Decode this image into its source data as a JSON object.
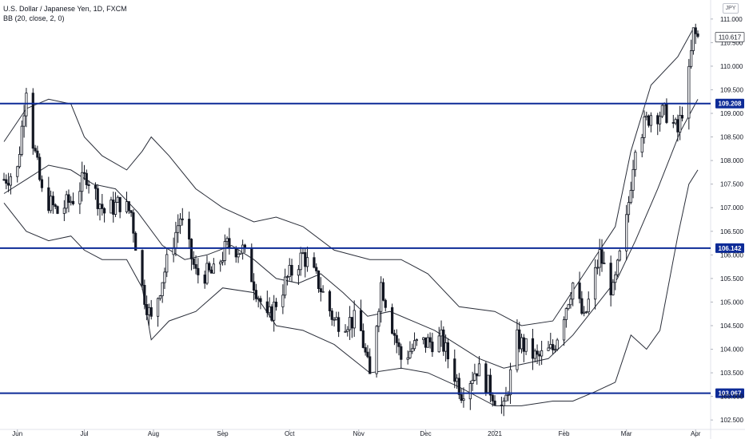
{
  "legend": {
    "symbol_line": "U.S. Dollar / Japanese Yen, 1D, FXCM",
    "indicator_line": "BB (20, close, 2, 0)"
  },
  "currency_badge": "JPY",
  "colors": {
    "level_line": "#0d2b97",
    "candle": "#131722",
    "band": "#2a2e39",
    "price_label_bg": "#0d2b97",
    "last_price_bg": "#ffffff"
  },
  "chart_data": {
    "type": "candlestick",
    "title": "U.S. Dollar / Japanese Yen, 1D, FXCM",
    "indicator": "BB (20, close, 2, 0)",
    "ylim": [
      102.3,
      111.2
    ],
    "y_ticks": [
      "111.000",
      "110.500",
      "110.000",
      "109.500",
      "109.000",
      "108.500",
      "108.000",
      "107.500",
      "107.000",
      "106.500",
      "106.000",
      "105.500",
      "105.000",
      "104.500",
      "104.000",
      "103.500",
      "103.000",
      "102.500"
    ],
    "x_ticks": [
      "Jun",
      "Jul",
      "Aug",
      "Sep",
      "Oct",
      "Nov",
      "Dec",
      "2021",
      "Feb",
      "Mar",
      "Apr"
    ],
    "horizontal_levels": [
      109.208,
      106.142,
      103.067
    ],
    "level_labels": [
      "109.208",
      "106.142",
      "103.067"
    ],
    "last_price": "110.617",
    "close_path": [
      {
        "d": "2020-05-26",
        "c": 107.6
      },
      {
        "d": "2020-06-01",
        "c": 107.8
      },
      {
        "d": "2020-06-05",
        "c": 109.6
      },
      {
        "d": "2020-06-08",
        "c": 108.4
      },
      {
        "d": "2020-06-12",
        "c": 107.3
      },
      {
        "d": "2020-06-19",
        "c": 106.9
      },
      {
        "d": "2020-06-26",
        "c": 107.2
      },
      {
        "d": "2020-07-02",
        "c": 107.7
      },
      {
        "d": "2020-07-10",
        "c": 106.9
      },
      {
        "d": "2020-07-17",
        "c": 107.1
      },
      {
        "d": "2020-07-22",
        "c": 106.9
      },
      {
        "d": "2020-07-27",
        "c": 105.3
      },
      {
        "d": "2020-07-31",
        "c": 104.6
      },
      {
        "d": "2020-08-05",
        "c": 105.5
      },
      {
        "d": "2020-08-13",
        "c": 106.8
      },
      {
        "d": "2020-08-20",
        "c": 105.6
      },
      {
        "d": "2020-08-28",
        "c": 105.6
      },
      {
        "d": "2020-09-03",
        "c": 106.2
      },
      {
        "d": "2020-09-10",
        "c": 106.1
      },
      {
        "d": "2020-09-21",
        "c": 104.6
      },
      {
        "d": "2020-09-30",
        "c": 105.5
      },
      {
        "d": "2020-10-07",
        "c": 106.0
      },
      {
        "d": "2020-10-14",
        "c": 105.4
      },
      {
        "d": "2020-10-21",
        "c": 104.6
      },
      {
        "d": "2020-11-01",
        "c": 104.6
      },
      {
        "d": "2020-11-06",
        "c": 103.4
      },
      {
        "d": "2020-11-11",
        "c": 105.4
      },
      {
        "d": "2020-11-20",
        "c": 103.8
      },
      {
        "d": "2020-11-27",
        "c": 104.1
      },
      {
        "d": "2020-12-08",
        "c": 104.2
      },
      {
        "d": "2020-12-17",
        "c": 103.1
      },
      {
        "d": "2020-12-24",
        "c": 103.6
      },
      {
        "d": "2021-01-05",
        "c": 102.7
      },
      {
        "d": "2021-01-11",
        "c": 104.2
      },
      {
        "d": "2021-01-20",
        "c": 103.8
      },
      {
        "d": "2021-01-27",
        "c": 104.0
      },
      {
        "d": "2021-02-05",
        "c": 105.4
      },
      {
        "d": "2021-02-10",
        "c": 104.6
      },
      {
        "d": "2021-02-17",
        "c": 106.0
      },
      {
        "d": "2021-02-23",
        "c": 105.2
      },
      {
        "d": "2021-03-01",
        "c": 106.7
      },
      {
        "d": "2021-03-05",
        "c": 108.4
      },
      {
        "d": "2021-03-12",
        "c": 109.0
      },
      {
        "d": "2021-03-19",
        "c": 109.0
      },
      {
        "d": "2021-03-24",
        "c": 108.6
      },
      {
        "d": "2021-03-29",
        "c": 109.8
      },
      {
        "d": "2021-03-31",
        "c": 110.7
      },
      {
        "d": "2021-04-02",
        "c": 110.6
      }
    ],
    "bb_upper": [
      {
        "d": "2020-05-26",
        "v": 108.4
      },
      {
        "d": "2020-06-05",
        "v": 109.1
      },
      {
        "d": "2020-06-15",
        "v": 109.3
      },
      {
        "d": "2020-06-25",
        "v": 109.2
      },
      {
        "d": "2020-07-01",
        "v": 108.5
      },
      {
        "d": "2020-07-09",
        "v": 108.1
      },
      {
        "d": "2020-07-20",
        "v": 107.8
      },
      {
        "d": "2020-07-27",
        "v": 108.2
      },
      {
        "d": "2020-07-31",
        "v": 108.5
      },
      {
        "d": "2020-08-08",
        "v": 108.1
      },
      {
        "d": "2020-08-20",
        "v": 107.4
      },
      {
        "d": "2020-09-01",
        "v": 107.0
      },
      {
        "d": "2020-09-15",
        "v": 106.7
      },
      {
        "d": "2020-09-25",
        "v": 106.8
      },
      {
        "d": "2020-10-07",
        "v": 106.6
      },
      {
        "d": "2020-10-21",
        "v": 106.1
      },
      {
        "d": "2020-11-06",
        "v": 105.9
      },
      {
        "d": "2020-11-20",
        "v": 105.9
      },
      {
        "d": "2020-12-02",
        "v": 105.6
      },
      {
        "d": "2020-12-16",
        "v": 104.9
      },
      {
        "d": "2021-01-01",
        "v": 104.8
      },
      {
        "d": "2021-01-13",
        "v": 104.5
      },
      {
        "d": "2021-01-27",
        "v": 104.6
      },
      {
        "d": "2021-02-10",
        "v": 105.6
      },
      {
        "d": "2021-02-24",
        "v": 106.6
      },
      {
        "d": "2021-03-03",
        "v": 108.2
      },
      {
        "d": "2021-03-12",
        "v": 109.6
      },
      {
        "d": "2021-03-24",
        "v": 110.2
      },
      {
        "d": "2021-03-31",
        "v": 110.8
      }
    ],
    "bb_middle": [
      {
        "d": "2020-05-26",
        "v": 107.3
      },
      {
        "d": "2020-06-05",
        "v": 107.6
      },
      {
        "d": "2020-06-15",
        "v": 107.9
      },
      {
        "d": "2020-06-25",
        "v": 107.8
      },
      {
        "d": "2020-07-05",
        "v": 107.5
      },
      {
        "d": "2020-07-15",
        "v": 107.4
      },
      {
        "d": "2020-07-25",
        "v": 106.9
      },
      {
        "d": "2020-08-05",
        "v": 106.2
      },
      {
        "d": "2020-08-15",
        "v": 105.9
      },
      {
        "d": "2020-08-25",
        "v": 106.0
      },
      {
        "d": "2020-09-05",
        "v": 106.2
      },
      {
        "d": "2020-09-15",
        "v": 105.9
      },
      {
        "d": "2020-09-25",
        "v": 105.5
      },
      {
        "d": "2020-10-05",
        "v": 105.4
      },
      {
        "d": "2020-10-15",
        "v": 105.6
      },
      {
        "d": "2020-10-25",
        "v": 105.2
      },
      {
        "d": "2020-11-05",
        "v": 104.7
      },
      {
        "d": "2020-11-15",
        "v": 104.8
      },
      {
        "d": "2020-11-25",
        "v": 104.6
      },
      {
        "d": "2020-12-05",
        "v": 104.4
      },
      {
        "d": "2020-12-15",
        "v": 104.1
      },
      {
        "d": "2020-12-25",
        "v": 103.8
      },
      {
        "d": "2021-01-05",
        "v": 103.6
      },
      {
        "d": "2021-01-15",
        "v": 103.7
      },
      {
        "d": "2021-01-25",
        "v": 103.8
      },
      {
        "d": "2021-02-05",
        "v": 104.3
      },
      {
        "d": "2021-02-15",
        "v": 104.9
      },
      {
        "d": "2021-02-25",
        "v": 105.5
      },
      {
        "d": "2021-03-05",
        "v": 106.3
      },
      {
        "d": "2021-03-15",
        "v": 107.4
      },
      {
        "d": "2021-03-25",
        "v": 108.6
      },
      {
        "d": "2021-04-02",
        "v": 109.3
      }
    ],
    "bb_lower": [
      {
        "d": "2020-05-26",
        "v": 107.1
      },
      {
        "d": "2020-06-05",
        "v": 106.5
      },
      {
        "d": "2020-06-15",
        "v": 106.3
      },
      {
        "d": "2020-06-25",
        "v": 106.4
      },
      {
        "d": "2020-07-01",
        "v": 106.1
      },
      {
        "d": "2020-07-09",
        "v": 105.9
      },
      {
        "d": "2020-07-20",
        "v": 105.9
      },
      {
        "d": "2020-07-27",
        "v": 105.3
      },
      {
        "d": "2020-07-31",
        "v": 104.2
      },
      {
        "d": "2020-08-08",
        "v": 104.6
      },
      {
        "d": "2020-08-20",
        "v": 104.8
      },
      {
        "d": "2020-09-01",
        "v": 105.3
      },
      {
        "d": "2020-09-15",
        "v": 105.2
      },
      {
        "d": "2020-09-25",
        "v": 104.5
      },
      {
        "d": "2020-10-07",
        "v": 104.4
      },
      {
        "d": "2020-10-21",
        "v": 104.1
      },
      {
        "d": "2020-11-06",
        "v": 103.5
      },
      {
        "d": "2020-11-20",
        "v": 103.6
      },
      {
        "d": "2020-12-02",
        "v": 103.5
      },
      {
        "d": "2020-12-16",
        "v": 103.2
      },
      {
        "d": "2021-01-01",
        "v": 102.8
      },
      {
        "d": "2021-01-13",
        "v": 102.8
      },
      {
        "d": "2021-01-27",
        "v": 102.9
      },
      {
        "d": "2021-02-05",
        "v": 102.9
      },
      {
        "d": "2021-02-15",
        "v": 103.1
      },
      {
        "d": "2021-02-24",
        "v": 103.3
      },
      {
        "d": "2021-03-03",
        "v": 104.3
      },
      {
        "d": "2021-03-10",
        "v": 104.0
      },
      {
        "d": "2021-03-16",
        "v": 104.4
      },
      {
        "d": "2021-03-24",
        "v": 106.4
      },
      {
        "d": "2021-03-29",
        "v": 107.5
      },
      {
        "d": "2021-04-02",
        "v": 107.8
      }
    ]
  }
}
